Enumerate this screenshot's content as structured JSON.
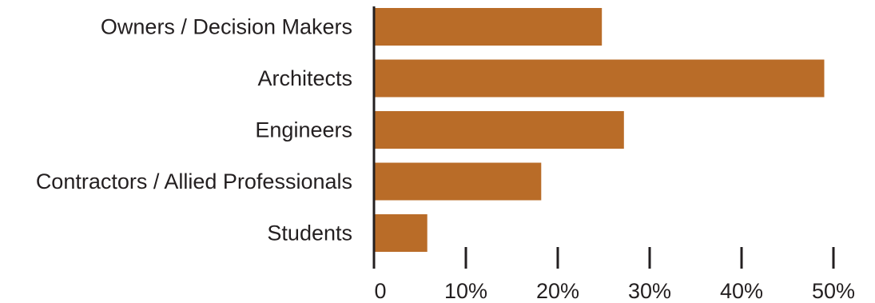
{
  "chart_data": {
    "type": "bar",
    "orientation": "horizontal",
    "categories": [
      "Owners / Decision Makers",
      "Architects",
      "Engineers",
      "Contractors / Allied Professionals",
      "Students"
    ],
    "values": [
      24.8,
      49.0,
      27.2,
      18.2,
      5.8
    ],
    "xlim": [
      0,
      50
    ],
    "x_ticks": [
      0,
      10,
      20,
      30,
      40,
      50
    ],
    "x_tick_labels": [
      "0",
      "10%",
      "20%",
      "30%",
      "40%",
      "50%"
    ],
    "title": "",
    "xlabel": "",
    "ylabel": "",
    "bar_color": "#b96c28",
    "axis_color": "#231f20",
    "grid": false,
    "legend": "none"
  }
}
